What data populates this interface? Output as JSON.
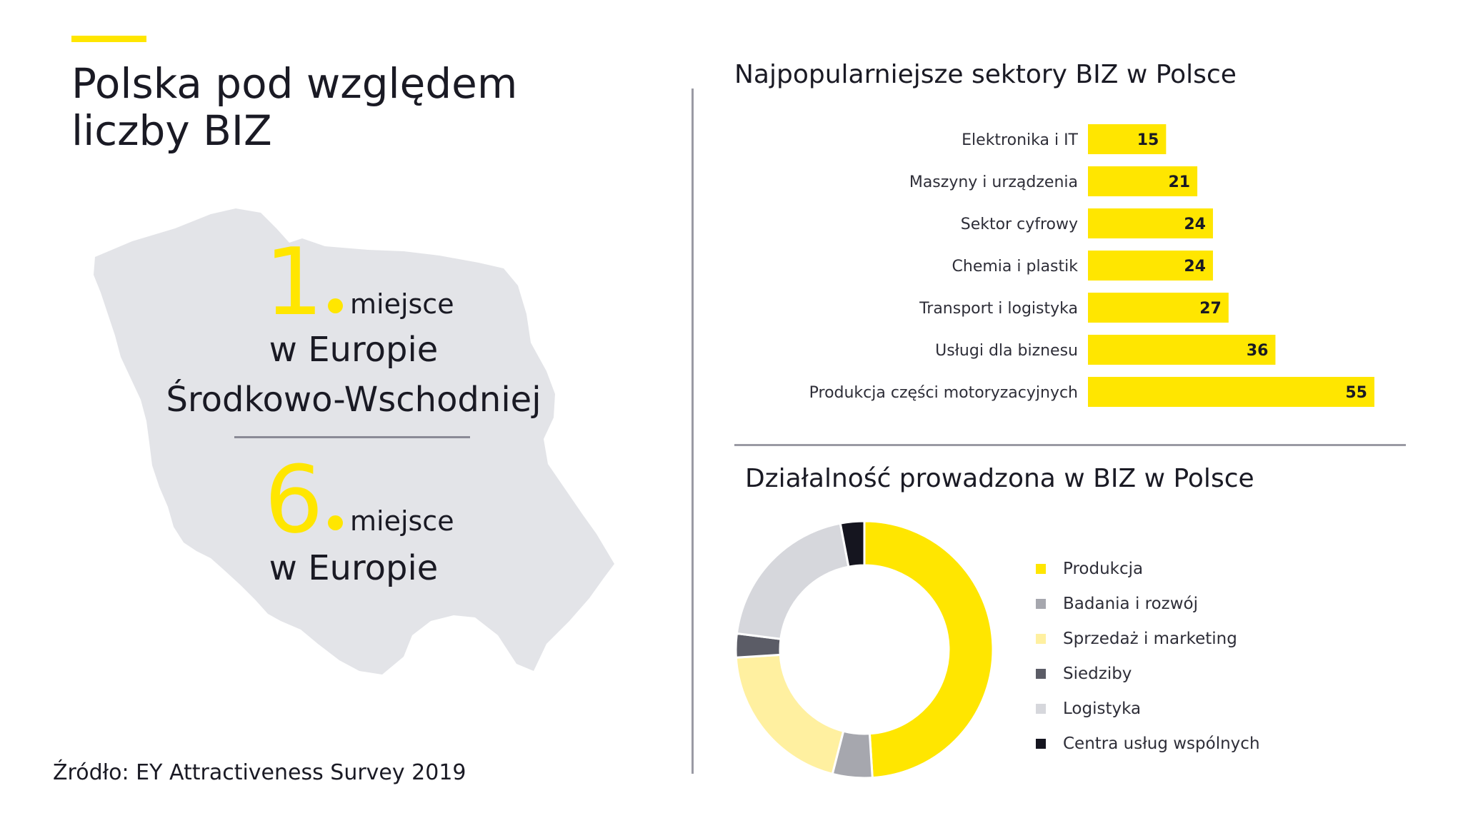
{
  "header": {
    "title_line1": "Polska pod względem",
    "title_line2": "liczby BIZ"
  },
  "ranking": {
    "first_rank": "1",
    "first_word": "miejsce",
    "first_line1": "w Europie",
    "first_line2": "Środkowo-Wschodniej",
    "second_rank": "6",
    "second_word": "miejsce",
    "second_line1": "w Europie"
  },
  "source": "Źródło: EY Attractiveness Survey 2019",
  "colors": {
    "accent": "#ffe600",
    "map": "#e3e4e8",
    "text": "#1a1a24",
    "divider": "#9a9aa4"
  },
  "chart_data": [
    {
      "type": "bar",
      "orientation": "horizontal",
      "title": "Najpopularniejsze sektory BIZ w Polsce",
      "categories": [
        "Elektronika i IT",
        "Maszyny i urządzenia",
        "Sektor cyfrowy",
        "Chemia i plastik",
        "Transport i logistyka",
        "Usługi dla biznesu",
        "Produkcja części motoryzacyjnych"
      ],
      "values": [
        15,
        21,
        24,
        24,
        27,
        36,
        55
      ],
      "bar_color": "#ffe600",
      "data_labels": true,
      "xlim": [
        0,
        55
      ]
    },
    {
      "type": "pie",
      "style": "donut",
      "title": "Działalność prowadzona w BIZ w Polsce",
      "labels": [
        "Produkcja",
        "Badania i rozwój",
        "Sprzedaż i marketing",
        "Siedziby",
        "Logistyka",
        "Centra usług wspólnych"
      ],
      "values": [
        49,
        5,
        20,
        3,
        20,
        3
      ],
      "colors": [
        "#ffe600",
        "#a6a7ae",
        "#fff0a0",
        "#5b5c66",
        "#d6d7dc",
        "#15151f"
      ],
      "legend_position": "right"
    }
  ]
}
